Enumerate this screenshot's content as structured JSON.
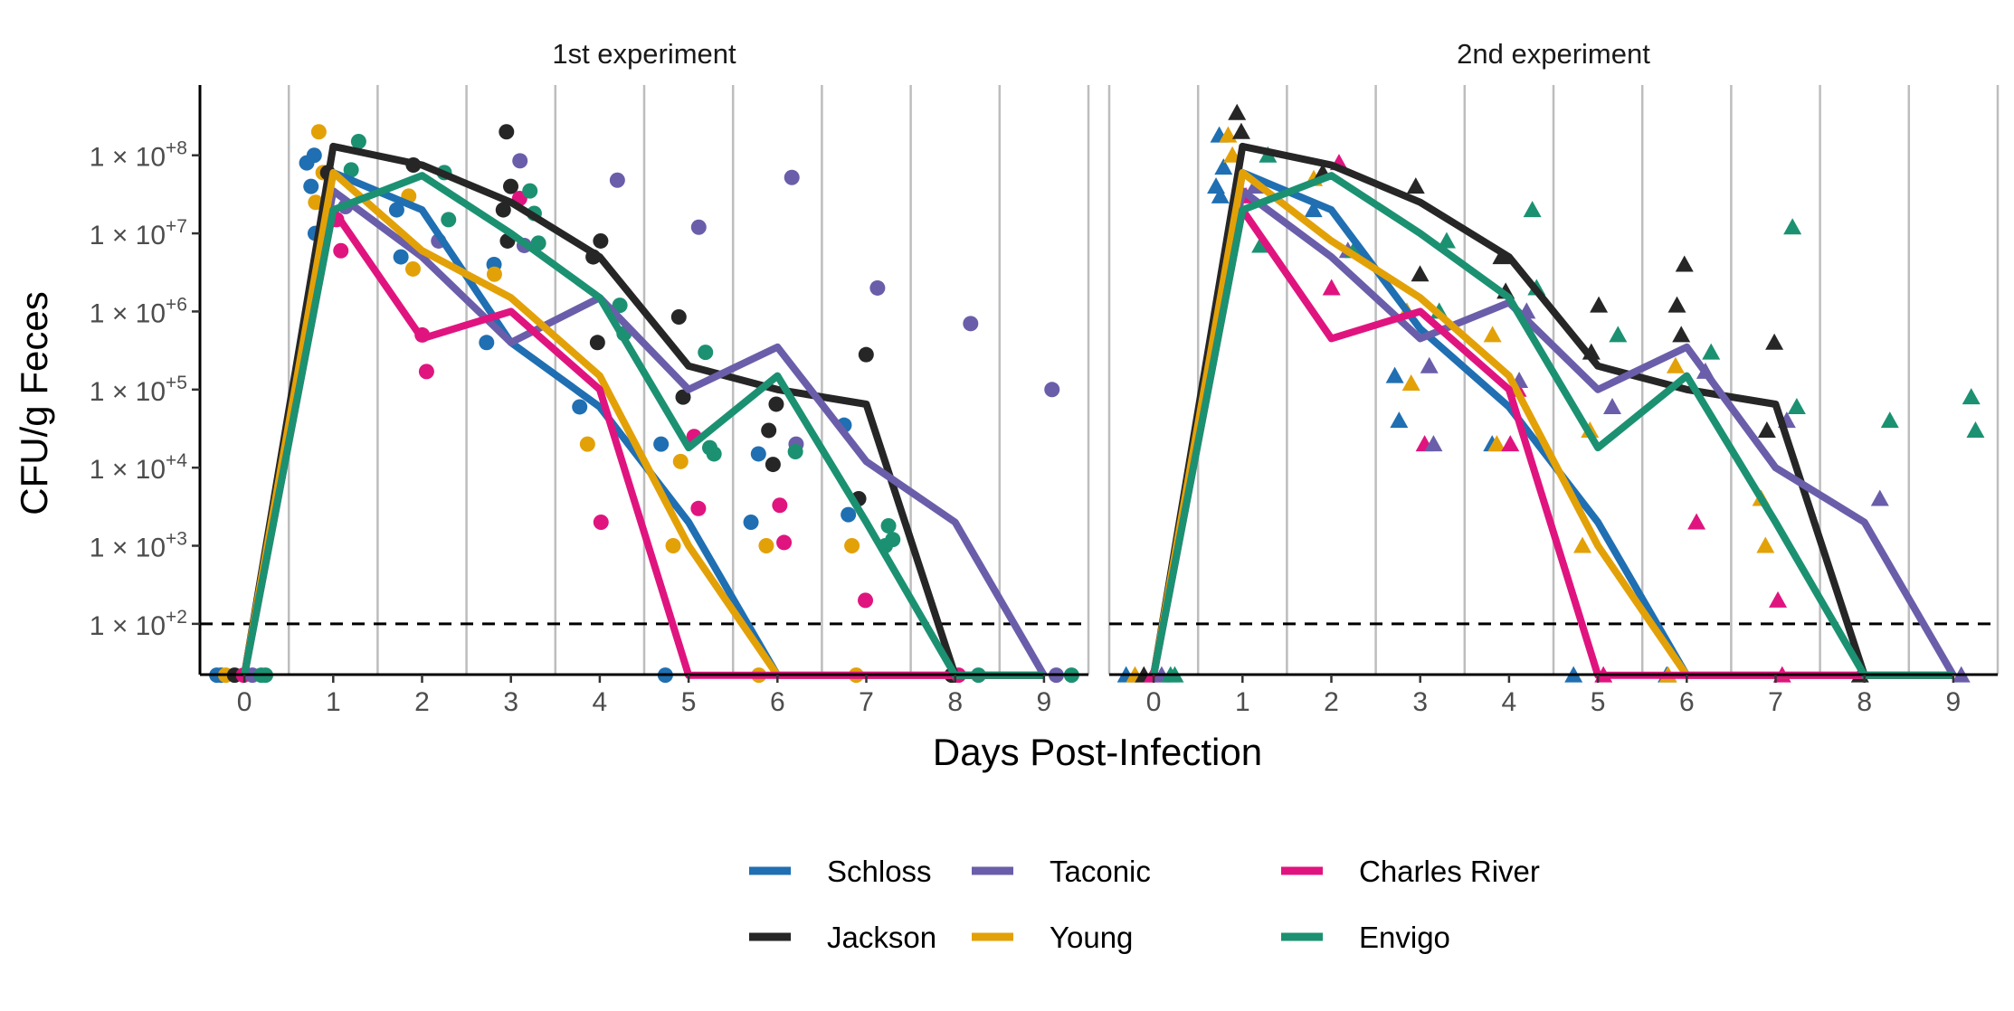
{
  "chart_data": {
    "type": "line",
    "x_label": "Days Post-Infection",
    "y_label": "CFU/g Feces",
    "y_scale": "log10",
    "y_ticks": [
      {
        "value": 100,
        "base": "1 × 10",
        "exp": "+2"
      },
      {
        "value": 1000,
        "base": "1 × 10",
        "exp": "+3"
      },
      {
        "value": 10000,
        "base": "1 × 10",
        "exp": "+4"
      },
      {
        "value": 100000,
        "base": "1 × 10",
        "exp": "+5"
      },
      {
        "value": 1000000,
        "base": "1 × 10",
        "exp": "+6"
      },
      {
        "value": 10000000,
        "base": "1 × 10",
        "exp": "+7"
      },
      {
        "value": 100000000,
        "base": "1 × 10",
        "exp": "+8"
      }
    ],
    "x_ticks": [
      "0",
      "1",
      "2",
      "3",
      "4",
      "5",
      "6",
      "7",
      "8",
      "9"
    ],
    "xlim": [
      -0.5,
      9.5
    ],
    "ylim_log10": [
      1.35,
      8.9
    ],
    "limit_of_detection": 100,
    "below_detection_value": 22,
    "grid": "vertical lines between days",
    "legend_position": "bottom",
    "series_order": [
      "Schloss",
      "Jackson",
      "Taconic",
      "Young",
      "Charles River",
      "Envigo"
    ],
    "colors": {
      "Schloss": "#1f6fb2",
      "Young": "#e3a108",
      "Jackson": "#262626",
      "Charles River": "#e0147f",
      "Taconic": "#6a5eaa",
      "Envigo": "#1b9172"
    },
    "offsets": {
      "Schloss": -0.25,
      "Young": -0.15,
      "Jackson": -0.05,
      "Charles River": 0.05,
      "Taconic": 0.15,
      "Envigo": 0.25
    },
    "panels": [
      {
        "title": "1st experiment",
        "marker": "circle",
        "medians": {
          "Schloss": [
            22,
            60000000,
            20000000,
            400000,
            60000,
            2000,
            22,
            22,
            22,
            22
          ],
          "Young": [
            22,
            60000000,
            6000000,
            1500000,
            150000,
            1000,
            22,
            22,
            22,
            22
          ],
          "Jackson": [
            22,
            130000000,
            75000000,
            25000000,
            5000000,
            200000,
            100000,
            65000,
            22,
            22
          ],
          "Charles River": [
            22,
            20000000,
            450000,
            1000000,
            100000,
            22,
            22,
            22,
            22,
            22
          ],
          "Taconic": [
            22,
            35000000,
            5000000,
            400000,
            1500000,
            100000,
            350000,
            12000,
            2000,
            22
          ],
          "Envigo": [
            22,
            20000000,
            55000000,
            10000000,
            1500000,
            18000,
            150000,
            2000,
            22,
            22
          ]
        },
        "points": {
          "Schloss": [
            [
              0,
              22
            ],
            [
              0,
              22
            ],
            [
              1,
              100000000
            ],
            [
              1,
              80000000
            ],
            [
              1,
              40000000
            ],
            [
              1,
              10000000
            ],
            [
              2,
              20000000
            ],
            [
              2,
              5000000
            ],
            [
              3,
              4000000
            ],
            [
              3,
              400000
            ],
            [
              4,
              60000
            ],
            [
              5,
              20000
            ],
            [
              5,
              22
            ],
            [
              6,
              15000
            ],
            [
              6,
              2000
            ],
            [
              7,
              35000
            ],
            [
              7,
              2500
            ]
          ],
          "Young": [
            [
              0,
              22
            ],
            [
              1,
              200000000
            ],
            [
              1,
              60000000
            ],
            [
              1,
              25000000
            ],
            [
              2,
              30000000
            ],
            [
              2,
              3500000
            ],
            [
              3,
              3000000
            ],
            [
              4,
              20000
            ],
            [
              5,
              12000
            ],
            [
              5,
              1000
            ],
            [
              6,
              1000
            ],
            [
              6,
              22
            ],
            [
              7,
              1000
            ],
            [
              7,
              22
            ]
          ],
          "Jackson": [
            [
              0,
              22
            ],
            [
              1,
              60000000
            ],
            [
              1,
              15000000
            ],
            [
              2,
              75000000
            ],
            [
              3,
              200000000
            ],
            [
              3,
              40000000
            ],
            [
              3,
              20000000
            ],
            [
              3,
              8000000
            ],
            [
              4,
              8000000
            ],
            [
              4,
              5000000
            ],
            [
              4,
              400000
            ],
            [
              5,
              850000
            ],
            [
              5,
              80000
            ],
            [
              6,
              65000
            ],
            [
              6,
              30000
            ],
            [
              6,
              11000
            ],
            [
              7,
              280000
            ],
            [
              7,
              4000
            ],
            [
              8,
              22
            ]
          ],
          "Charles River": [
            [
              0,
              22
            ],
            [
              1,
              15000000
            ],
            [
              1,
              6000000
            ],
            [
              2,
              500000
            ],
            [
              2,
              170000
            ],
            [
              3,
              28000000
            ],
            [
              4,
              2000
            ],
            [
              5,
              25000
            ],
            [
              5,
              3000
            ],
            [
              6,
              3300
            ],
            [
              6,
              1100
            ],
            [
              7,
              200
            ],
            [
              8,
              22
            ]
          ],
          "Taconic": [
            [
              0,
              22
            ],
            [
              1,
              22000000
            ],
            [
              2,
              8000000
            ],
            [
              3,
              85000000
            ],
            [
              3,
              7000000
            ],
            [
              4,
              48000000
            ],
            [
              5,
              12000000
            ],
            [
              6,
              52000000
            ],
            [
              6,
              20000
            ],
            [
              7,
              2000000
            ],
            [
              8,
              700000
            ],
            [
              9,
              100000
            ],
            [
              9,
              22
            ]
          ],
          "Envigo": [
            [
              0,
              22
            ],
            [
              0,
              22
            ],
            [
              1,
              150000000
            ],
            [
              1,
              65000000
            ],
            [
              2,
              60000000
            ],
            [
              2,
              15000000
            ],
            [
              3,
              35000000
            ],
            [
              3,
              18000000
            ],
            [
              3,
              7500000
            ],
            [
              4,
              1200000
            ],
            [
              4,
              520000
            ],
            [
              5,
              300000
            ],
            [
              5,
              18000
            ],
            [
              5,
              15000
            ],
            [
              6,
              16000
            ],
            [
              7,
              1800
            ],
            [
              7,
              1200
            ],
            [
              7,
              1000
            ],
            [
              8,
              22
            ],
            [
              9,
              22
            ]
          ]
        }
      },
      {
        "title": "2nd experiment",
        "marker": "triangle",
        "medians": {
          "Schloss": [
            22,
            60000000,
            20000000,
            600000,
            60000,
            2000,
            22,
            22,
            22,
            22
          ],
          "Young": [
            22,
            60000000,
            8000000,
            1500000,
            150000,
            1000,
            22,
            22,
            22,
            22
          ],
          "Jackson": [
            22,
            130000000,
            75000000,
            25000000,
            5000000,
            200000,
            100000,
            65000,
            22,
            22
          ],
          "Charles River": [
            22,
            20000000,
            450000,
            1000000,
            100000,
            22,
            22,
            22,
            22,
            22
          ],
          "Taconic": [
            22,
            35000000,
            5000000,
            450000,
            1300000,
            100000,
            350000,
            10000,
            2000,
            22
          ],
          "Envigo": [
            22,
            20000000,
            55000000,
            10000000,
            1500000,
            18000,
            150000,
            2000,
            22,
            22
          ]
        },
        "points": {
          "Schloss": [
            [
              0,
              22
            ],
            [
              1,
              180000000
            ],
            [
              1,
              70000000
            ],
            [
              1,
              40000000
            ],
            [
              1,
              30000000
            ],
            [
              2,
              20000000
            ],
            [
              3,
              150000
            ],
            [
              3,
              40000
            ],
            [
              4,
              20000
            ],
            [
              5,
              22
            ],
            [
              6,
              22
            ]
          ],
          "Young": [
            [
              0,
              22
            ],
            [
              1,
              180000000
            ],
            [
              1,
              100000000
            ],
            [
              2,
              50000000
            ],
            [
              3,
              1000000
            ],
            [
              3,
              120000
            ],
            [
              4,
              500000
            ],
            [
              4,
              20000
            ],
            [
              5,
              30000
            ],
            [
              5,
              1000
            ],
            [
              6,
              200000
            ],
            [
              6,
              22
            ],
            [
              7,
              4000
            ],
            [
              7,
              1000
            ]
          ],
          "Jackson": [
            [
              0,
              22
            ],
            [
              1,
              350000000
            ],
            [
              1,
              200000000
            ],
            [
              2,
              60000000
            ],
            [
              3,
              40000000
            ],
            [
              3,
              3000000
            ],
            [
              4,
              5000000
            ],
            [
              4,
              1800000
            ],
            [
              5,
              1200000
            ],
            [
              5,
              300000
            ],
            [
              6,
              4000000
            ],
            [
              6,
              1200000
            ],
            [
              6,
              500000
            ],
            [
              7,
              400000
            ],
            [
              7,
              30000
            ],
            [
              8,
              22
            ]
          ],
          "Charles River": [
            [
              0,
              22
            ],
            [
              1,
              30000000
            ],
            [
              2,
              80000000
            ],
            [
              2,
              2000000
            ],
            [
              3,
              20000
            ],
            [
              4,
              100000
            ],
            [
              4,
              20000
            ],
            [
              5,
              22
            ],
            [
              6,
              2000
            ],
            [
              7,
              200
            ],
            [
              7,
              22
            ]
          ],
          "Taconic": [
            [
              0,
              22
            ],
            [
              1,
              40000000
            ],
            [
              2,
              6000000
            ],
            [
              3,
              200000
            ],
            [
              3,
              20000
            ],
            [
              4,
              1000000
            ],
            [
              4,
              130000
            ],
            [
              5,
              60000
            ],
            [
              6,
              170000
            ],
            [
              7,
              40000
            ],
            [
              8,
              4000
            ],
            [
              9,
              22
            ]
          ],
          "Envigo": [
            [
              0,
              22
            ],
            [
              0,
              22
            ],
            [
              1,
              100000000
            ],
            [
              1,
              7000000
            ],
            [
              2,
              6000000
            ],
            [
              3,
              8000000
            ],
            [
              3,
              1000000
            ],
            [
              4,
              20000000
            ],
            [
              4,
              2000000
            ],
            [
              5,
              500000
            ],
            [
              6,
              300000
            ],
            [
              7,
              12000000
            ],
            [
              7,
              60000
            ],
            [
              8,
              40000
            ],
            [
              9,
              80000
            ],
            [
              9,
              30000
            ]
          ]
        }
      }
    ]
  }
}
